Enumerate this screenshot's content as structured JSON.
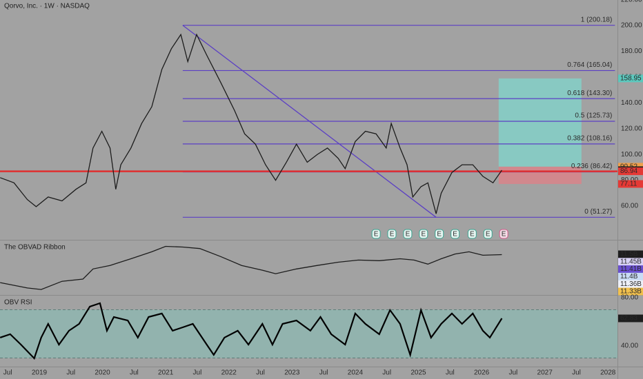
{
  "chart_data": [
    {
      "type": "line",
      "title": "Qorvo, Inc. · 1W · NASDAQ",
      "color": "#1c1c1c",
      "x": [
        2018.38,
        2018.6,
        2018.81,
        2018.95,
        2019.14,
        2019.36,
        2019.58,
        2019.74,
        2019.85,
        2019.99,
        2020.12,
        2020.21,
        2020.29,
        2020.45,
        2020.62,
        2020.78,
        2020.94,
        2021.09,
        2021.24,
        2021.35,
        2021.49,
        2021.65,
        2021.87,
        2022.09,
        2022.25,
        2022.42,
        2022.58,
        2022.74,
        2022.91,
        2023.07,
        2023.24,
        2023.4,
        2023.56,
        2023.73,
        2023.84,
        2024,
        2024.16,
        2024.33,
        2024.49,
        2024.57,
        2024.71,
        2024.82,
        2024.91,
        2025.04,
        2025.15,
        2025.28,
        2025.36,
        2025.53,
        2025.69,
        2025.86,
        2026.02,
        2026.18,
        2026.32
      ],
      "values": [
        82,
        78,
        65,
        59.5,
        67,
        64,
        73,
        78,
        105,
        118,
        105,
        73,
        92,
        105,
        124,
        137,
        166,
        182,
        193,
        172,
        193,
        177,
        156,
        134,
        116,
        108,
        92,
        80,
        94,
        108,
        94,
        100,
        105,
        97,
        89,
        110,
        118,
        116,
        105,
        124,
        105,
        92,
        67,
        75,
        78,
        54,
        70,
        86,
        92,
        92,
        83,
        78,
        87.8
      ],
      "xlim": [
        2018.378,
        2028.15
      ],
      "xticks": [
        {
          "value": 2018.5,
          "label": "Jul"
        },
        2019,
        {
          "value": 2019.5,
          "label": "Jul"
        },
        2020,
        {
          "value": 2020.5,
          "label": "Jul"
        },
        2021,
        {
          "value": 2021.5,
          "label": "Jul"
        },
        2022,
        {
          "value": 2022.5,
          "label": "Jul"
        },
        2023,
        {
          "value": 2023.5,
          "label": "Jul"
        },
        2024,
        {
          "value": 2024.5,
          "label": "Jul"
        },
        2025,
        {
          "value": 2025.5,
          "label": "Jul"
        },
        2026,
        {
          "value": 2026.5,
          "label": "Jul"
        },
        2027,
        {
          "value": 2027.5,
          "label": "Jul"
        },
        2028
      ],
      "ylim": [
        33.8,
        219.8
      ],
      "yticks": [
        {
          "value": 60,
          "label": "60.00"
        },
        {
          "value": 80,
          "label": "80.00"
        },
        {
          "value": 100,
          "label": "100.00"
        },
        {
          "value": 120,
          "label": "120.00"
        },
        {
          "value": 140,
          "label": "140.00"
        },
        {
          "value": 160,
          "label": "160.00"
        },
        {
          "value": 180,
          "label": "180.00"
        },
        {
          "value": 200,
          "label": "200.00"
        },
        {
          "value": 220,
          "label": "220.00"
        }
      ],
      "fib": {
        "start": 2021.27,
        "end": 2028.11,
        "color": "#5b3fc4",
        "levels": [
          {
            "value": 200.18,
            "label": "1 (200.18)"
          },
          {
            "value": 165.04,
            "label": "0.764 (165.04)"
          },
          {
            "value": 143.3,
            "label": "0.618 (143.30)"
          },
          {
            "value": 125.73,
            "label": "0.5 (125.73)"
          },
          {
            "value": 108.16,
            "label": "0.382 (108.16)"
          },
          {
            "value": 86.42,
            "label": "0.236 (86.42)"
          },
          {
            "value": 51.27,
            "label": "0 (51.27)"
          }
        ]
      },
      "trendline": {
        "x": [
          2021.27,
          2025.28
        ],
        "values": [
          200.18,
          51.27
        ]
      },
      "hline": {
        "value": 86.94,
        "color": "#e03030"
      },
      "position": {
        "start": 2026.27,
        "end": 2027.58,
        "entry": 90.52,
        "target": 158.95,
        "stop": 77.11
      },
      "price_labels": [
        {
          "value": 158.95,
          "label": "158.95",
          "color": "#5cc8bd",
          "text": "#1a1a1a"
        },
        {
          "value": 90.52,
          "label": "90.52",
          "color": "#f0a04b",
          "text": "#1a1a1a"
        },
        {
          "value": 87.8,
          "label": "87.80",
          "color": "#1e1e1e",
          "text": "#ffffff"
        },
        {
          "value": 86.94,
          "label": "86.94",
          "color": "#e53935",
          "text": "#1a1a1a"
        },
        {
          "value": 77.11,
          "label": "77.11",
          "color": "#e53935",
          "text": "#ffffff"
        }
      ],
      "earnings": [
        {
          "x": 2024.33,
          "label": "E"
        },
        {
          "x": 2024.58,
          "label": "E"
        },
        {
          "x": 2024.83,
          "label": "E"
        },
        {
          "x": 2025.08,
          "label": "E"
        },
        {
          "x": 2025.33,
          "label": "E"
        },
        {
          "x": 2025.58,
          "label": "E"
        },
        {
          "x": 2025.85,
          "label": "E"
        },
        {
          "x": 2026.1,
          "label": "E"
        },
        {
          "x": 2026.35,
          "label": "E"
        }
      ]
    },
    {
      "type": "line",
      "title": "The OBVAD Ribbon",
      "color": "#1c1c1c",
      "x": [
        2018.38,
        2018.81,
        2019.03,
        2019.36,
        2019.69,
        2019.85,
        2020.12,
        2020.45,
        2020.78,
        2021,
        2021.27,
        2021.54,
        2021.87,
        2022.2,
        2022.53,
        2022.74,
        2023.07,
        2023.4,
        2023.73,
        2024.05,
        2024.38,
        2024.71,
        2024.93,
        2025.15,
        2025.36,
        2025.58,
        2025.8,
        2026.02,
        2026.32
      ],
      "values": [
        11.371,
        11.346,
        11.339,
        11.377,
        11.387,
        11.434,
        11.45,
        11.481,
        11.513,
        11.538,
        11.535,
        11.528,
        11.491,
        11.45,
        11.428,
        11.412,
        11.434,
        11.45,
        11.465,
        11.475,
        11.472,
        11.481,
        11.475,
        11.456,
        11.481,
        11.503,
        11.513,
        11.497,
        11.5
      ],
      "ylim": [
        11.314,
        11.562
      ],
      "price_labels": [
        {
          "value": 11.5,
          "label": "11.5B",
          "color": "#1e1e1e",
          "text": "#ffffff"
        },
        {
          "value": 11.45,
          "label": "11.45B",
          "color": "#d9d2f5",
          "text": "#1a1a1a"
        },
        {
          "value": 11.41,
          "label": "11.41B",
          "color": "#6a4fd0",
          "text": "#ffffff"
        },
        {
          "value": 11.4,
          "label": "11.4B",
          "color": "#c9dcf5",
          "text": "#1a1a1a"
        },
        {
          "value": 11.36,
          "label": "11.36B",
          "color": "#eef0f8",
          "text": "#1a1a1a"
        },
        {
          "value": 11.33,
          "label": "11.33B",
          "color": "#f2c14e",
          "text": "#1a1a1a"
        }
      ]
    },
    {
      "type": "line",
      "title": "OBV RSI",
      "color": "#000000",
      "x": [
        2018.38,
        2018.54,
        2018.71,
        2018.92,
        2019.03,
        2019.14,
        2019.31,
        2019.47,
        2019.63,
        2019.8,
        2019.96,
        2020.07,
        2020.18,
        2020.4,
        2020.56,
        2020.73,
        2020.94,
        2021.11,
        2021.27,
        2021.43,
        2021.65,
        2021.76,
        2021.93,
        2022.14,
        2022.31,
        2022.53,
        2022.69,
        2022.85,
        2023.07,
        2023.29,
        2023.45,
        2023.62,
        2023.84,
        2024,
        2024.16,
        2024.38,
        2024.55,
        2024.71,
        2024.87,
        2025.04,
        2025.2,
        2025.36,
        2025.53,
        2025.69,
        2025.86,
        2026.02,
        2026.13,
        2026.32
      ],
      "values": [
        46.9,
        49.7,
        41.1,
        29.7,
        46.9,
        58.3,
        41.1,
        52.6,
        58.3,
        72.6,
        75.4,
        52.6,
        64,
        61.1,
        46.9,
        64,
        66.9,
        52.6,
        55.4,
        58.3,
        41.1,
        32.6,
        46.9,
        52.6,
        41.1,
        58.3,
        41.1,
        58.3,
        61.1,
        52.6,
        64,
        49.7,
        41.1,
        66.9,
        58.3,
        49.7,
        69.7,
        58.3,
        32.6,
        69.7,
        46.9,
        58.3,
        66.9,
        58.3,
        66.9,
        52.6,
        46.9,
        62.83
      ],
      "ylim": [
        22.9,
        81.1
      ],
      "yticks": [
        {
          "value": 40,
          "label": "40.00"
        },
        {
          "value": 80,
          "label": "80.00"
        }
      ],
      "band": [
        30,
        70
      ],
      "price_labels": [
        {
          "value": 62.83,
          "label": "62.83",
          "color": "#1e1e1e",
          "text": "#ffffff"
        }
      ]
    }
  ]
}
